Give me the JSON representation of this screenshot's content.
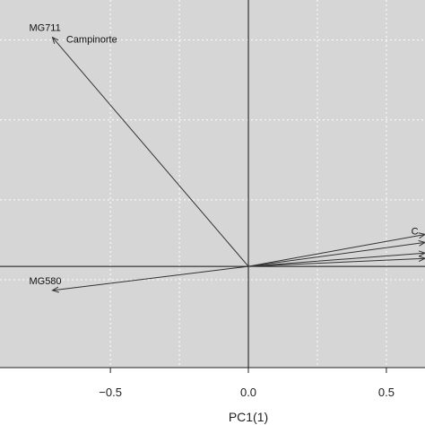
{
  "chart_data": {
    "type": "scatter",
    "subtype": "biplot",
    "xlabel": "PC1(1)",
    "ylabel": "",
    "xlim": [
      -0.9,
      0.64
    ],
    "ylim": [
      -0.38,
      1.0
    ],
    "x_ticks": [
      -0.5,
      0.0,
      0.5
    ],
    "x_tick_labels": [
      "−0.5",
      "0.0",
      "0.5"
    ],
    "y_ticks": [
      -0.05,
      0.25,
      0.55,
      0.85
    ],
    "grid": true,
    "grid_style": "dotted white",
    "background": "#d6d6d6",
    "reference_lines": {
      "x": 0,
      "y": 0
    },
    "vectors": [
      {
        "label": "MG711",
        "x": -0.71,
        "y": 0.86
      },
      {
        "label": "MG580",
        "x": -0.71,
        "y": -0.09
      },
      {
        "label": "",
        "x": 0.64,
        "y": 0.12
      },
      {
        "label": "",
        "x": 0.64,
        "y": 0.09
      },
      {
        "label": "",
        "x": 0.64,
        "y": 0.05
      },
      {
        "label": "",
        "x": 0.64,
        "y": 0.03
      }
    ],
    "annotations": [
      {
        "text": "Campinorte",
        "x": -0.66,
        "y": 0.84
      },
      {
        "text": "C",
        "x": 0.59,
        "y": 0.12
      }
    ]
  },
  "colors": {
    "panel": "#d6d6d6",
    "grid": "#ffffff",
    "reference": "#111111",
    "vector": "#333333",
    "text": "#222222"
  }
}
